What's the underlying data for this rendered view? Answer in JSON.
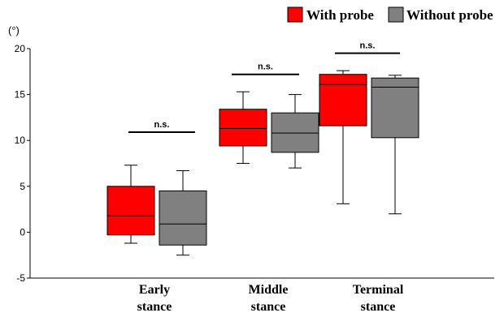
{
  "chart_data": {
    "type": "box",
    "y_unit_label": "(°)",
    "ylim": [
      -5,
      20
    ],
    "yticks": [
      -5,
      0,
      5,
      10,
      15,
      20
    ],
    "categories": [
      [
        "Early",
        "stance"
      ],
      [
        "Middle",
        "stance"
      ],
      [
        "Terminal",
        "stance"
      ]
    ],
    "series": [
      {
        "name": "With probe",
        "color": "#ff0000",
        "boxes": [
          {
            "whisker_low": -1.2,
            "q1": -0.3,
            "median": 1.8,
            "q3": 5.0,
            "whisker_high": 7.3
          },
          {
            "whisker_low": 7.5,
            "q1": 9.4,
            "median": 11.3,
            "q3": 13.4,
            "whisker_high": 15.3
          },
          {
            "whisker_low": 3.1,
            "q1": 11.6,
            "median": 16.1,
            "q3": 17.2,
            "whisker_high": 17.6
          }
        ]
      },
      {
        "name": "Without probe",
        "color": "#808080",
        "boxes": [
          {
            "whisker_low": -2.5,
            "q1": -1.4,
            "median": 0.9,
            "q3": 4.5,
            "whisker_high": 6.7
          },
          {
            "whisker_low": 7.0,
            "q1": 8.7,
            "median": 10.8,
            "q3": 13.0,
            "whisker_high": 15.0
          },
          {
            "whisker_low": 2.0,
            "q1": 10.3,
            "median": 15.8,
            "q3": 16.8,
            "whisker_high": 17.1
          }
        ]
      }
    ],
    "significance": [
      {
        "label": "n.s.",
        "level": 10.9
      },
      {
        "label": "n.s.",
        "level": 17.2
      },
      {
        "label": "n.s.",
        "level": 19.5
      }
    ],
    "legend_position": "top-right"
  }
}
